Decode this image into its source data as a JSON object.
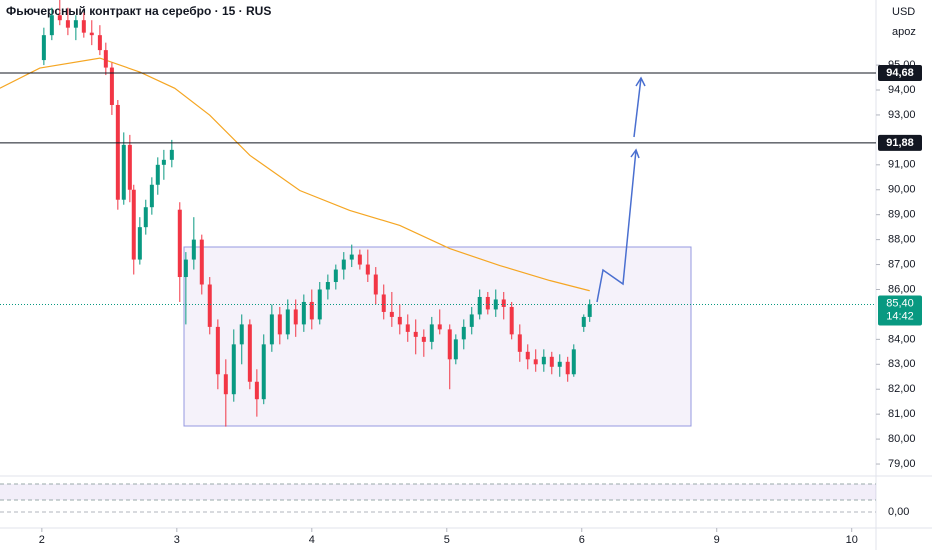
{
  "chart_data": {
    "type": "candlestick",
    "title": "Фьючерсный контракт на серебро · 15 · RUS",
    "currency": "USD",
    "scale_mode": "apoz",
    "xlim": [
      1.69,
      8.18
    ],
    "xticks": [
      2,
      3,
      4,
      5,
      6,
      {
        "value": 7,
        "label": "9"
      },
      {
        "value": 8,
        "label": "10"
      }
    ],
    "ylim": [
      78.52,
      97.61
    ],
    "yticks": [
      {
        "value": 95,
        "label": "95,00"
      },
      {
        "value": 94,
        "label": "94,00"
      },
      {
        "value": 93,
        "label": "93,00"
      },
      {
        "value": 91,
        "label": "91,00"
      },
      {
        "value": 90,
        "label": "90,00"
      },
      {
        "value": 89,
        "label": "89,00"
      },
      {
        "value": 88,
        "label": "88,00"
      },
      {
        "value": 87,
        "label": "87,00"
      },
      {
        "value": 86,
        "label": "86,00"
      },
      {
        "value": 84,
        "label": "84,00"
      },
      {
        "value": 83,
        "label": "83,00"
      },
      {
        "value": 82,
        "label": "82,00"
      },
      {
        "value": 81,
        "label": "81,00"
      },
      {
        "value": 80,
        "label": "80,00"
      },
      {
        "value": 79,
        "label": "79,00"
      }
    ],
    "up_color": "#089981",
    "down_color": "#f23645",
    "x": [
      2.015,
      2.074,
      2.133,
      2.193,
      2.252,
      2.311,
      2.37,
      2.43,
      2.474,
      2.519,
      2.563,
      2.607,
      2.652,
      2.681,
      2.726,
      2.77,
      2.815,
      2.859,
      2.904,
      2.963,
      3.022,
      3.067,
      3.126,
      3.185,
      3.244,
      3.304,
      3.363,
      3.422,
      3.481,
      3.541,
      3.593,
      3.644,
      3.704,
      3.763,
      3.822,
      3.881,
      3.941,
      4.0,
      4.059,
      4.119,
      4.178,
      4.237,
      4.296,
      4.356,
      4.415,
      4.474,
      4.533,
      4.593,
      4.652,
      4.711,
      4.77,
      4.83,
      4.889,
      4.948,
      5.022,
      5.067,
      5.126,
      5.185,
      5.244,
      5.304,
      5.363,
      5.422,
      5.481,
      5.541,
      5.6,
      5.659,
      5.719,
      5.778,
      5.837,
      5.896,
      5.941,
      6.015,
      6.059
    ],
    "open": [
      95.2,
      96.2,
      97,
      96.8,
      96.5,
      96.8,
      96.3,
      96.2,
      95.6,
      94.9,
      93.4,
      89.6,
      91.8,
      90,
      87.2,
      88.5,
      89.3,
      90.2,
      91,
      91.2,
      89.2,
      86.5,
      87.2,
      88,
      86.2,
      84.5,
      82.6,
      81.8,
      83.8,
      84.6,
      82.3,
      81.6,
      83.8,
      85,
      84.2,
      85.2,
      84.6,
      85.5,
      84.8,
      86,
      86.3,
      86.8,
      87.2,
      87.4,
      87,
      86.6,
      85.8,
      85.1,
      84.9,
      84.6,
      84.3,
      84.1,
      83.9,
      84.6,
      84.4,
      83.2,
      84,
      84.5,
      85,
      85.7,
      85.2,
      85.6,
      85.3,
      84.2,
      83.5,
      83.2,
      83,
      83.3,
      82.9,
      83.1,
      82.6,
      84.5,
      84.9
    ],
    "high": [
      96.5,
      97.3,
      97.8,
      97.3,
      97,
      97.1,
      96.8,
      96.6,
      95.9,
      95.1,
      93.6,
      92.3,
      92.2,
      90.2,
      88.9,
      89.6,
      90.5,
      91.3,
      91.6,
      92,
      89.5,
      87.5,
      88.9,
      88.2,
      86.5,
      84.8,
      83.2,
      84.4,
      85,
      84.8,
      82.8,
      84.2,
      85.4,
      85.3,
      85.6,
      85.6,
      85.8,
      86,
      86.3,
      86.6,
      87,
      87.5,
      87.8,
      87.6,
      87.6,
      86.9,
      86.2,
      85.9,
      85.4,
      85,
      84.8,
      84.4,
      84.9,
      85.2,
      84.6,
      84.2,
      84.8,
      85.3,
      86,
      85.9,
      86,
      85.9,
      85.5,
      84.6,
      83.8,
      83.6,
      83.6,
      83.5,
      83.4,
      83.3,
      83.8,
      85,
      85.6
    ],
    "low": [
      95,
      96,
      96.6,
      96.2,
      96,
      96.1,
      95.8,
      95.4,
      94.6,
      93,
      89.2,
      89.4,
      89.5,
      86.6,
      87,
      88.2,
      89,
      89.8,
      90.4,
      90.9,
      85.5,
      84.6,
      86.8,
      85.8,
      84.2,
      82,
      80.5,
      81.5,
      83,
      82,
      80.9,
      81.4,
      83.5,
      83.8,
      84,
      84.1,
      84.3,
      84.4,
      84.6,
      85.6,
      86,
      86.4,
      86.9,
      86.8,
      86.3,
      85.4,
      84.8,
      84.5,
      84.2,
      83.9,
      83.4,
      83.3,
      83.6,
      84.2,
      82,
      83,
      83.6,
      84.2,
      84.8,
      85,
      84.9,
      84.8,
      84,
      83.1,
      82.8,
      82.7,
      82.7,
      82.6,
      82.5,
      82.3,
      82.5,
      84.3,
      84.7
    ],
    "close": [
      96.2,
      97,
      96.8,
      96.5,
      96.8,
      96.3,
      96.2,
      95.6,
      94.9,
      93.4,
      89.6,
      91.8,
      90,
      87.2,
      88.5,
      89.3,
      90.2,
      91,
      91.2,
      91.6,
      86.5,
      87.2,
      88,
      86.2,
      84.5,
      82.6,
      81.8,
      83.8,
      84.6,
      82.3,
      81.6,
      83.8,
      85,
      84.2,
      85.2,
      84.6,
      85.5,
      84.8,
      86,
      86.3,
      86.8,
      87.2,
      87.4,
      87,
      86.6,
      85.8,
      85.1,
      84.9,
      84.6,
      84.3,
      84.1,
      83.9,
      84.6,
      84.4,
      83.2,
      84,
      84.5,
      85,
      85.7,
      85.2,
      85.6,
      85.3,
      84.2,
      83.5,
      83.2,
      83,
      83.3,
      82.9,
      83.1,
      82.6,
      83.6,
      84.9,
      85.4
    ],
    "moving_average": {
      "color": "#f5a623",
      "x": [
        1.689,
        1.985,
        2.43,
        2.726,
        2.985,
        3.244,
        3.541,
        3.911,
        4.281,
        4.652,
        5.022,
        5.393,
        5.763,
        6.059
      ],
      "values": [
        94.07,
        94.88,
        95.28,
        94.72,
        94.07,
        92.99,
        91.38,
        89.97,
        89.17,
        88.57,
        87.64,
        86.96,
        86.36,
        85.95
      ]
    },
    "levels": [
      {
        "value": 94.68,
        "label": "94,68"
      },
      {
        "value": 91.88,
        "label": "91,88"
      }
    ],
    "last_price": {
      "value": 85.4,
      "label": "85,40"
    },
    "countdown": "14:42",
    "indicator_ticks": [
      {
        "value": 0,
        "label": "0,00"
      }
    ]
  }
}
